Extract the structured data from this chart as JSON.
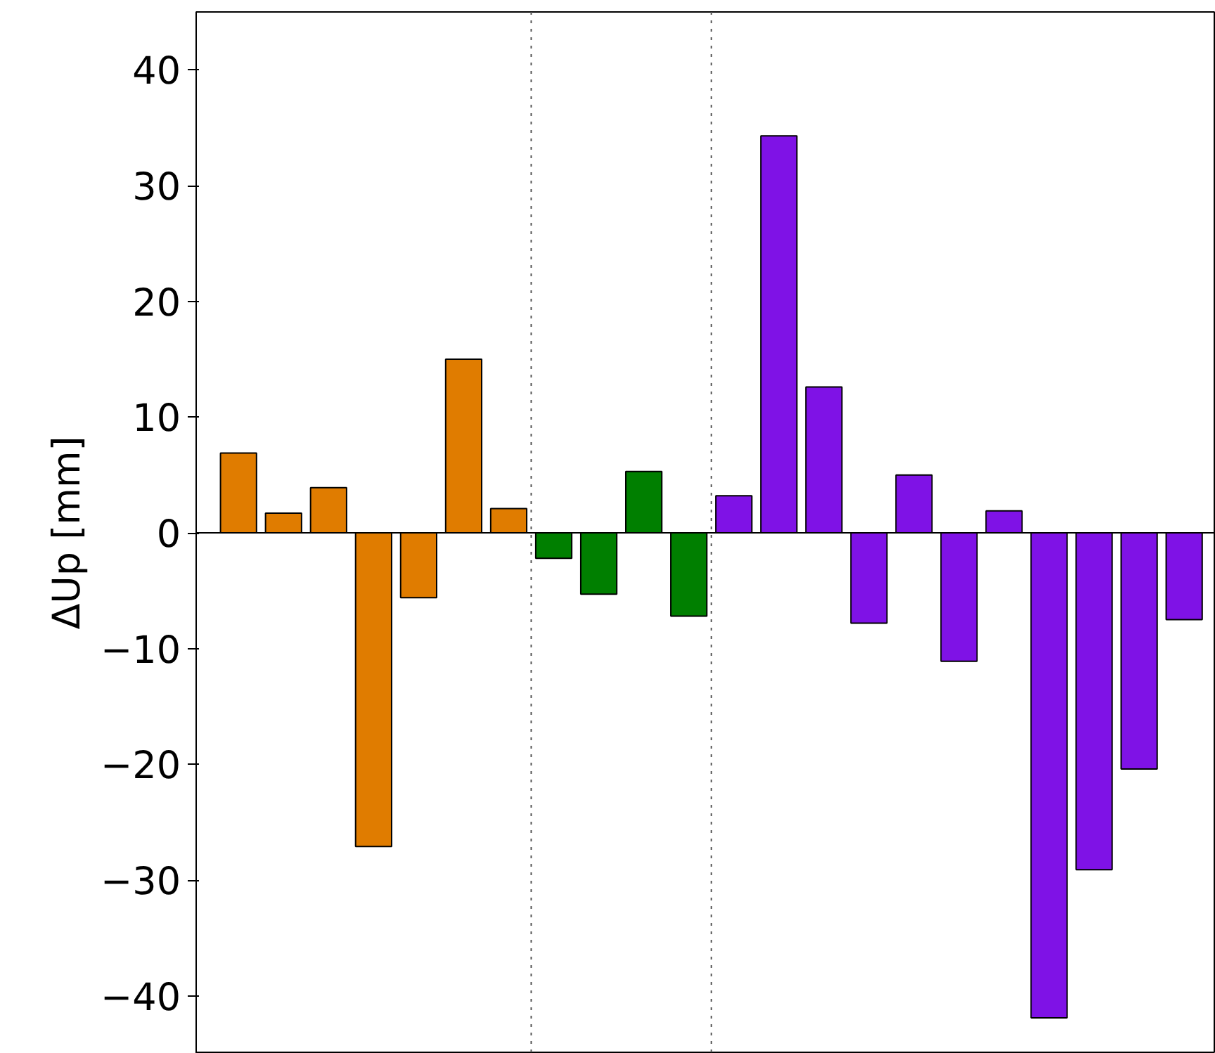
{
  "chart_data": {
    "type": "bar",
    "ylabel": "ΔUp [mm]",
    "categories": [
      null,
      null,
      null,
      null,
      null,
      null,
      null,
      null,
      null,
      null,
      null,
      null,
      null,
      null,
      null,
      null,
      null,
      null,
      null,
      null,
      null,
      null
    ],
    "values": [
      6.9,
      1.7,
      3.9,
      -27.1,
      -5.6,
      15.0,
      2.1,
      -2.2,
      -5.3,
      5.3,
      -7.2,
      3.2,
      34.3,
      12.6,
      -7.8,
      5.0,
      -11.1,
      1.9,
      -41.9,
      -29.1,
      -20.4,
      -7.5
    ],
    "colors": [
      "#e07c00",
      "#e07c00",
      "#e07c00",
      "#e07c00",
      "#e07c00",
      "#e07c00",
      "#e07c00",
      "#007f00",
      "#007f00",
      "#007f00",
      "#007f00",
      "#7f12e6",
      "#7f12e6",
      "#7f12e6",
      "#7f12e6",
      "#7f12e6",
      "#7f12e6",
      "#7f12e6",
      "#7f12e6",
      "#7f12e6",
      "#7f12e6",
      "#7f12e6"
    ],
    "ylim": [
      -45,
      45
    ],
    "yticks": [
      -40,
      -30,
      -20,
      -10,
      0,
      10,
      20,
      30,
      40
    ],
    "grid": false,
    "tick_labels": "y",
    "ref_lines": [
      {
        "axis": "y",
        "value": 0,
        "color": "#000000",
        "line_style": "solid"
      }
    ]
  }
}
